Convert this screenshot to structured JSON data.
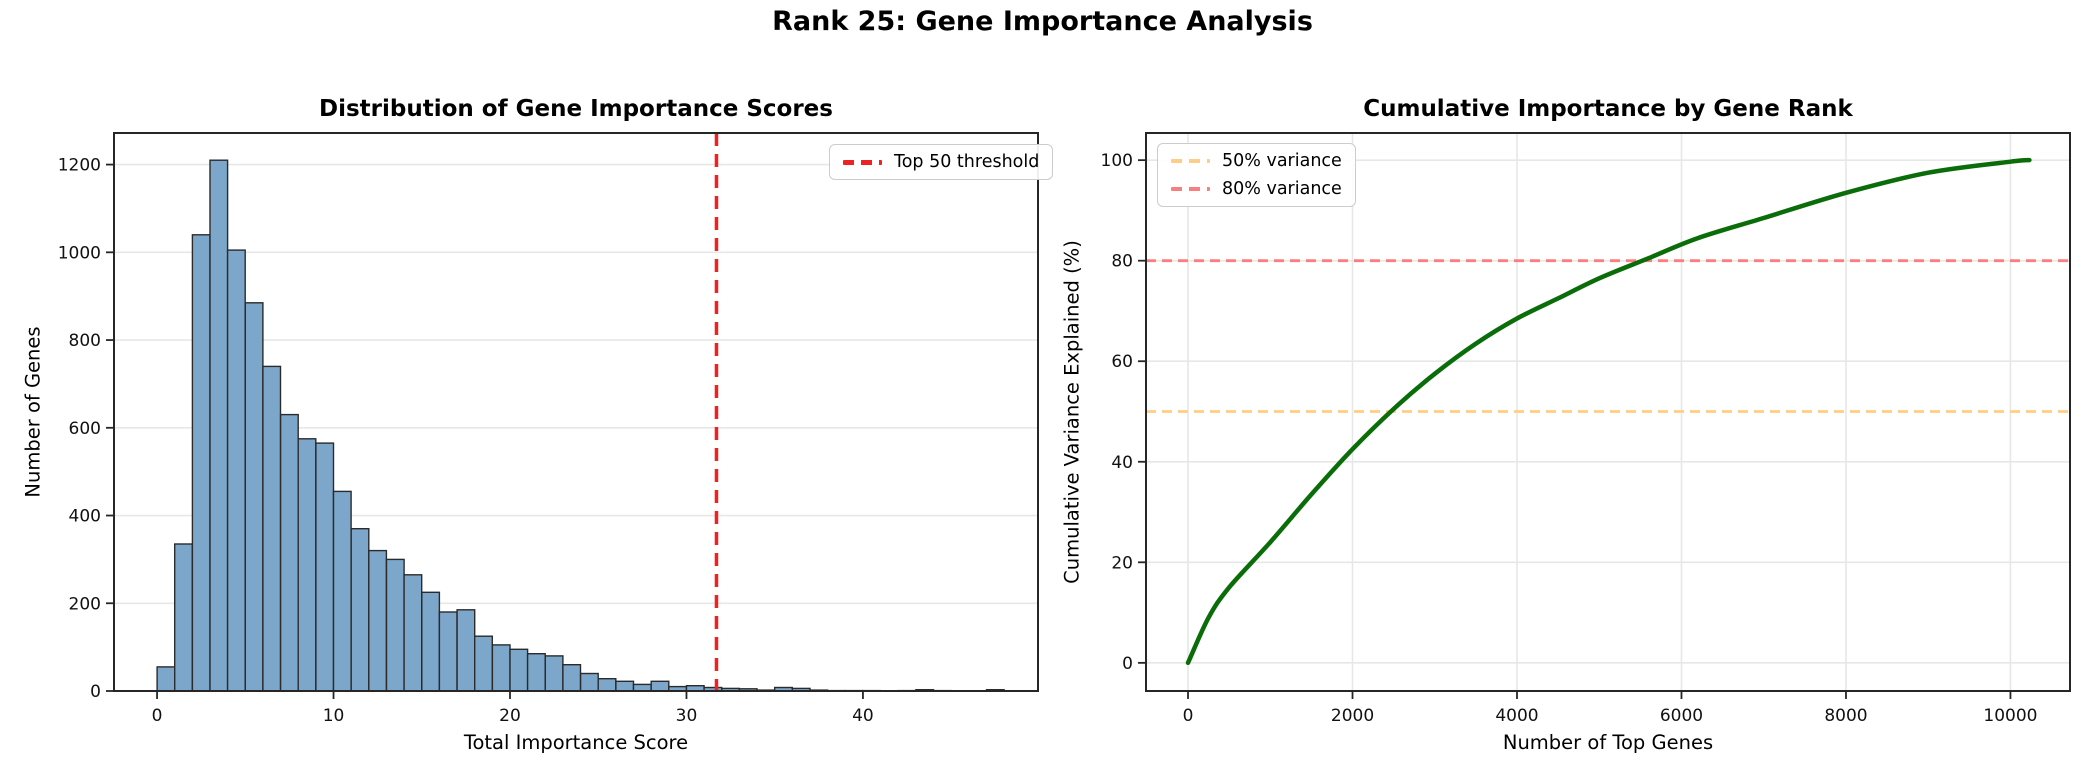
{
  "figure": {
    "suptitle": "Rank 25: Gene Importance Analysis",
    "background": "#ffffff",
    "grid_color": "#e7e7e7",
    "spine_color": "#262626",
    "tick_color": "#262626"
  },
  "chart_data": [
    {
      "type": "bar",
      "title": "Distribution of Gene Importance Scores",
      "xlabel": "Total Importance Score",
      "ylabel": "Number of Genes",
      "xlim": [
        -2.44,
        49.92
      ],
      "ylim": [
        0,
        1272
      ],
      "xticks": [
        0,
        10,
        20,
        30,
        40
      ],
      "yticks": [
        0,
        200,
        400,
        600,
        800,
        1000,
        1200
      ],
      "grid": "y",
      "bin_start": 0,
      "bin_width": 1,
      "bar_color": "#7da7ca",
      "bar_edge_color": "#2b2b2b",
      "values": [
        55,
        335,
        1040,
        1210,
        1005,
        885,
        740,
        630,
        575,
        565,
        455,
        370,
        320,
        300,
        265,
        225,
        180,
        185,
        125,
        105,
        95,
        85,
        80,
        60,
        40,
        28,
        22,
        15,
        22,
        10,
        12,
        8,
        6,
        5,
        2,
        8,
        6,
        2,
        1,
        1,
        1,
        0,
        1,
        3,
        1,
        0,
        0,
        3
      ],
      "threshold_line": {
        "x": 31.7,
        "color": "#ee2222",
        "dash": [
          13,
          8
        ],
        "width": 3.5
      },
      "legend": {
        "position": "top-right",
        "entries": [
          {
            "label": "Top 50 threshold",
            "color": "#ee2222",
            "dashed": true
          }
        ]
      }
    },
    {
      "type": "line",
      "title": "Cumulative Importance by Gene Rank",
      "xlabel": "Number of Top Genes",
      "ylabel": "Cumulative Variance Explained (%)",
      "xlim": [
        -511,
        10724
      ],
      "ylim": [
        -5.6,
        105.4
      ],
      "xticks": [
        0,
        2000,
        4000,
        6000,
        8000,
        10000
      ],
      "yticks": [
        0,
        20,
        40,
        60,
        80,
        100
      ],
      "grid": "both",
      "line_color": "#0a6d0a",
      "line_width": 4.5,
      "x": [
        0,
        250,
        500,
        1000,
        1500,
        2000,
        2500,
        3000,
        3500,
        4000,
        4500,
        5000,
        5600,
        6200,
        7000,
        8000,
        9000,
        10000,
        10230
      ],
      "y": [
        0,
        9,
        15,
        24,
        33.5,
        42.5,
        50.5,
        57.5,
        63.5,
        68.5,
        72.5,
        76.5,
        80.5,
        84.5,
        88.5,
        93.5,
        97.5,
        99.7,
        100
      ],
      "hlines": [
        {
          "y": 50,
          "color": "#ffce85",
          "dash": [
            10,
            6
          ],
          "width": 2.8
        },
        {
          "y": 80,
          "color": "#f87f7f",
          "dash": [
            10,
            6
          ],
          "width": 2.8
        }
      ],
      "legend": {
        "position": "top-left",
        "entries": [
          {
            "label": "50% variance",
            "color": "#ffce85",
            "dashed": true
          },
          {
            "label": "80% variance",
            "color": "#f87f7f",
            "dashed": true
          }
        ]
      }
    }
  ]
}
